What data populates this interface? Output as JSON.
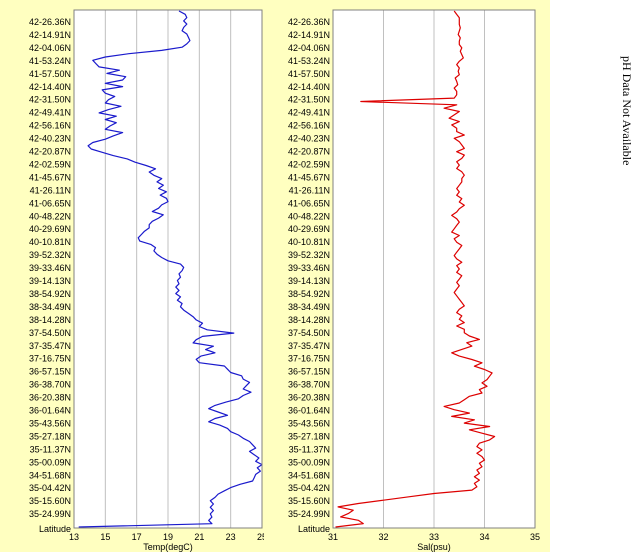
{
  "note": "pH Data Not Available",
  "arrow_color": "#dd0000",
  "chart_data": [
    {
      "type": "line",
      "xlabel": "Temp(degC)",
      "ylabel": "Latitude",
      "xlim": [
        13,
        25
      ],
      "xticks": [
        13,
        15,
        17,
        19,
        21,
        23,
        25
      ],
      "y_tick_labels": [
        "42-26.36N",
        "42-14.91N",
        "42-04.06N",
        "41-53.24N",
        "41-57.50N",
        "42-14.40N",
        "42-31.50N",
        "42-49.41N",
        "42-56.16N",
        "42-40.23N",
        "42-20.87N",
        "42-02.59N",
        "41-45.67N",
        "41-26.11N",
        "41-06.65N",
        "40-48.22N",
        "40-29.69N",
        "40-10.81N",
        "39-52.32N",
        "39-33.46N",
        "39-14.13N",
        "38-54.92N",
        "38-34.49N",
        "38-14.28N",
        "37-54.50N",
        "37-35.47N",
        "37-16.75N",
        "36-57.15N",
        "36-38.70N",
        "36-20.38N",
        "36-01.64N",
        "35-43.56N",
        "35-27.18N",
        "35-11.37N",
        "35-00.09N",
        "34-51.68N",
        "35-04.42N",
        "35-15.60N",
        "35-24.99N"
      ],
      "grid": true,
      "background": "#ffffc0",
      "series": [
        {
          "color": "#1a1acc",
          "x": [
            19.7,
            20.1,
            20.2,
            20.0,
            20.2,
            20.0,
            19.9,
            20.2,
            20.3,
            20.4,
            20.2,
            19.9,
            18.6,
            16.5,
            15.0,
            14.2,
            14.4,
            14.6,
            15.9,
            15.1,
            16.3,
            16.1,
            15.0,
            16.1,
            14.8,
            15.0,
            15.6,
            15.2,
            15.0,
            16.0,
            15.2,
            14.6,
            15.7,
            15.0,
            15.7,
            15.3,
            15.0,
            16.1,
            15.5,
            15.0,
            14.2,
            13.9,
            14.1,
            14.8,
            15.5,
            16.4,
            16.9,
            17.6,
            18.2,
            17.8,
            18.1,
            18.6,
            18.3,
            18.7,
            18.4,
            18.9,
            18.5,
            18.9,
            19.0,
            18.6,
            18.4,
            18.0,
            18.7,
            18.4,
            18.0,
            17.8,
            17.8,
            17.5,
            17.3,
            17.1,
            17.2,
            17.9,
            18.2,
            18.1,
            18.3,
            18.6,
            19.0,
            19.8,
            20.0,
            19.9,
            19.7,
            19.8,
            19.6,
            19.7,
            19.5,
            19.7,
            19.5,
            19.8,
            19.6,
            19.9,
            19.8,
            20.0,
            20.3,
            20.6,
            20.8,
            21.2,
            21.0,
            21.5,
            23.2,
            21.2,
            20.8,
            20.6,
            21.9,
            21.4,
            22.0,
            21.1,
            20.8,
            21.0,
            22.6,
            22.8,
            23.0,
            23.7,
            23.8,
            24.2,
            24.0,
            23.8,
            24.3,
            23.8,
            23.5,
            22.7,
            22.0,
            21.6,
            22.2,
            22.8,
            22.0,
            21.6,
            22.3,
            22.8,
            23.0,
            23.5,
            23.8,
            24.2,
            24.4,
            24.6,
            24.2,
            24.5,
            24.8,
            24.6,
            25.0,
            24.7,
            24.9,
            24.6,
            24.5,
            24.4,
            23.6,
            23.0,
            22.6,
            22.2,
            22.0,
            21.7,
            21.9,
            21.7,
            21.9,
            21.7,
            21.8,
            21.6,
            21.8,
            13.3
          ]
        }
      ]
    },
    {
      "type": "line",
      "xlabel": "Sal(psu)",
      "ylabel": "Latitude",
      "xlim": [
        31,
        35
      ],
      "xticks": [
        31,
        32,
        33,
        34,
        35
      ],
      "y_tick_labels": [
        "42-26.36N",
        "42-14.91N",
        "42-04.06N",
        "41-53.24N",
        "41-57.50N",
        "42-14.40N",
        "42-31.50N",
        "42-49.41N",
        "42-56.16N",
        "42-40.23N",
        "42-20.87N",
        "42-02.59N",
        "41-45.67N",
        "41-26.11N",
        "41-06.65N",
        "40-48.22N",
        "40-29.69N",
        "40-10.81N",
        "39-52.32N",
        "39-33.46N",
        "39-14.13N",
        "38-54.92N",
        "38-34.49N",
        "38-14.28N",
        "37-54.50N",
        "37-35.47N",
        "37-16.75N",
        "36-57.15N",
        "36-38.70N",
        "36-20.38N",
        "36-01.64N",
        "35-43.56N",
        "35-27.18N",
        "35-11.37N",
        "35-00.09N",
        "34-51.68N",
        "35-04.42N",
        "35-15.60N",
        "35-24.99N"
      ],
      "grid": true,
      "background": "#ffffc0",
      "series": [
        {
          "color": "#dd0000",
          "x": [
            33.4,
            33.45,
            33.5,
            33.5,
            33.5,
            33.52,
            33.5,
            33.48,
            33.52,
            33.5,
            33.5,
            33.55,
            33.52,
            33.55,
            33.58,
            33.5,
            33.45,
            33.5,
            33.48,
            33.5,
            33.42,
            33.45,
            33.47,
            33.4,
            33.45,
            33.45,
            33.4,
            31.55,
            33.45,
            33.2,
            33.5,
            33.4,
            33.3,
            33.5,
            33.35,
            33.45,
            33.45,
            33.6,
            33.4,
            33.5,
            33.55,
            33.6,
            33.45,
            33.6,
            33.55,
            33.45,
            33.5,
            33.45,
            33.55,
            33.6,
            33.55,
            33.55,
            33.5,
            33.45,
            33.5,
            33.45,
            33.55,
            33.5,
            33.6,
            33.5,
            33.45,
            33.35,
            33.45,
            33.5,
            33.45,
            33.4,
            33.35,
            33.5,
            33.4,
            33.45,
            33.55,
            33.5,
            33.45,
            33.4,
            33.45,
            33.55,
            33.45,
            33.5,
            33.45,
            33.55,
            33.5,
            33.45,
            33.5,
            33.45,
            33.4,
            33.45,
            33.5,
            33.55,
            33.6,
            33.5,
            33.45,
            33.55,
            33.5,
            33.6,
            33.45,
            33.6,
            33.6,
            33.7,
            33.9,
            33.65,
            33.75,
            33.55,
            33.35,
            33.5,
            33.75,
            33.95,
            33.8,
            34.0,
            34.15,
            34.1,
            34.05,
            33.95,
            34.05,
            33.9,
            33.95,
            33.7,
            33.6,
            33.5,
            33.2,
            33.4,
            33.7,
            33.35,
            33.8,
            33.6,
            34.1,
            33.7,
            33.95,
            34.2,
            34.1,
            33.9,
            33.85,
            33.95,
            33.85,
            33.95,
            34.0,
            33.9,
            33.95,
            33.85,
            33.9,
            33.8,
            33.9,
            33.8,
            33.85,
            33.75,
            33.0,
            32.5,
            32.0,
            31.5,
            31.1,
            31.4,
            31.3,
            31.15,
            31.5,
            31.6,
            31.05
          ]
        }
      ]
    }
  ]
}
